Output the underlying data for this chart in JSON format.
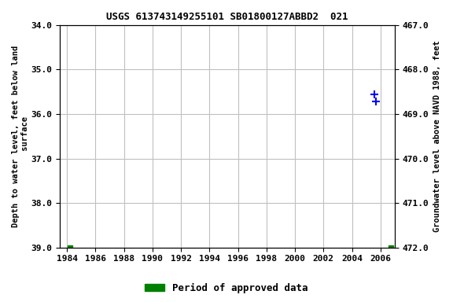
{
  "title": "USGS 613743149255101 SB01800127ABBD2  021",
  "ylabel_left": "Depth to water level, feet below land\n surface",
  "ylabel_right": "Groundwater level above NAVD 1988, feet",
  "ylim_left": [
    34.0,
    39.0
  ],
  "ylim_right": [
    472.0,
    467.0
  ],
  "xlim": [
    1983.5,
    2007
  ],
  "yticks_left": [
    34.0,
    35.0,
    36.0,
    37.0,
    38.0,
    39.0
  ],
  "yticks_right": [
    472.0,
    471.0,
    470.0,
    469.0,
    468.0,
    467.0
  ],
  "xticks": [
    1984,
    1986,
    1988,
    1990,
    1992,
    1994,
    1996,
    1998,
    2000,
    2002,
    2004,
    2006
  ],
  "background_color": "#ffffff",
  "grid_color": "#c0c0c0",
  "approved_data_points": {
    "x": [
      1984.2,
      2006.7
    ],
    "y": [
      39.0,
      39.0
    ],
    "color": "#008000",
    "marker": "s",
    "markersize": 5
  },
  "provisional_data_points_x": [
    2005.55,
    2005.7
  ],
  "provisional_data_points_y": [
    35.55,
    35.72
  ],
  "provisional_color": "#0000ff",
  "provisional_marker": "+",
  "provisional_markersize": 7,
  "legend_label": "Period of approved data",
  "legend_color": "#008000"
}
